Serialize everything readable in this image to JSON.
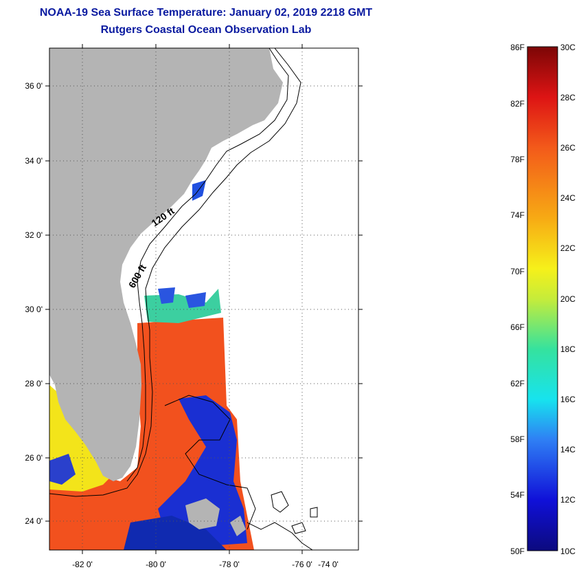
{
  "header": {
    "title": "NOAA-19 Sea Surface Temperature:  January 02, 2019 2218 GMT",
    "subtitle": "Rutgers Coastal Ocean Observation Lab"
  },
  "map": {
    "lat_labels": [
      "36 0'",
      "34 0'",
      "32 0'",
      "30 0'",
      "28 0'",
      "26 0'",
      "24 0'"
    ],
    "lon_labels": [
      "-82 0'",
      "-80 0'",
      "-78 0'",
      "-76 0'",
      "-74 0'"
    ],
    "isobath_labels": [
      "120 ft",
      "600 ft"
    ],
    "colors": {
      "land": "#b4b4b4",
      "ocean_nodata": "#ffffff",
      "warm": "#f2511e",
      "cool": "#f5e616",
      "cold": "#1a2fd2"
    }
  },
  "colorbar": {
    "fahrenheit": [
      "86F",
      "82F",
      "78F",
      "74F",
      "70F",
      "66F",
      "62F",
      "58F",
      "54F",
      "50F"
    ],
    "celsius": [
      "30C",
      "28C",
      "26C",
      "24C",
      "22C",
      "20C",
      "18C",
      "16C",
      "14C",
      "12C",
      "10C"
    ]
  }
}
